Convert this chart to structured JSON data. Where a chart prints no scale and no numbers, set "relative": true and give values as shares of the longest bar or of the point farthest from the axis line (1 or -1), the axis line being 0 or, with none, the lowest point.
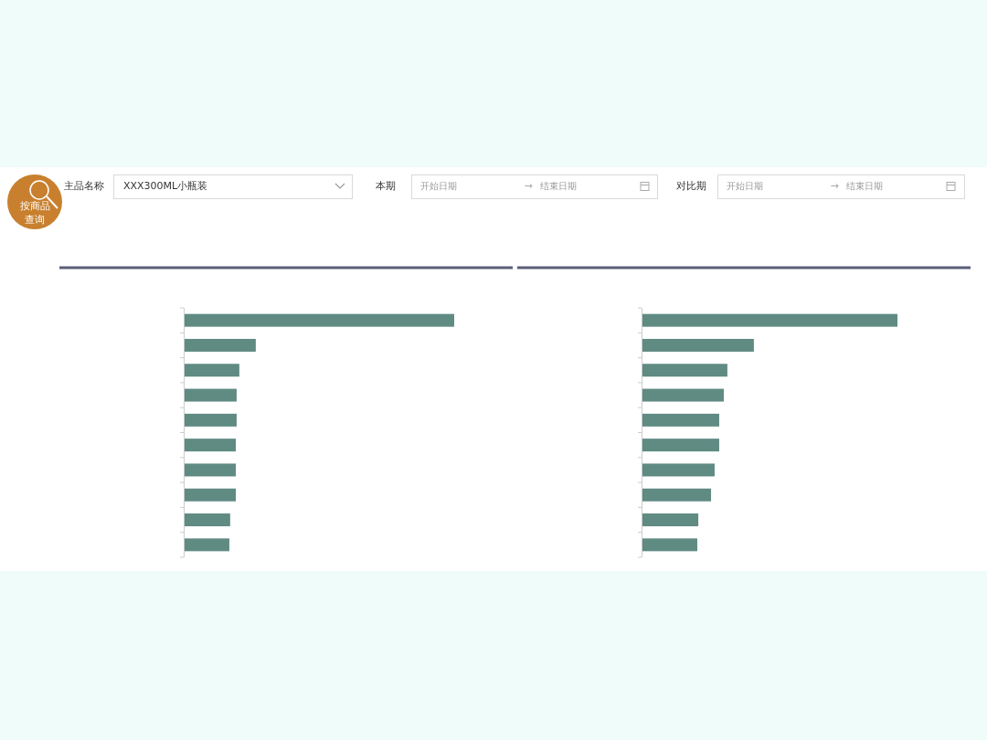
{
  "chart_data": [
    {
      "type": "other",
      "annotations": [
        "主品名称",
        "XXX300ML小瓶装",
        "本期",
        "开始日期",
        "→",
        "结束日期",
        "对比期",
        "开始日期",
        "→",
        "结束日期",
        "按商品",
        "查询"
      ]
    },
    {
      "type": "bar",
      "orientation": "horizontal",
      "relative": true,
      "categories": [
        null,
        null,
        null,
        null,
        null,
        null,
        null,
        null,
        null,
        null
      ],
      "values": [
        1,
        0.264,
        0.203,
        0.193,
        0.193,
        0.19,
        0.19,
        0.19,
        0.169,
        0.166
      ],
      "color": "#5f8b83"
    },
    {
      "type": "bar",
      "orientation": "horizontal",
      "relative": true,
      "categories": [
        null,
        null,
        null,
        null,
        null,
        null,
        null,
        null,
        null,
        null
      ],
      "values": [
        1,
        0.437,
        0.333,
        0.319,
        0.301,
        0.301,
        0.283,
        0.269,
        0.219,
        0.215
      ],
      "color": "#5f8b83"
    }
  ]
}
